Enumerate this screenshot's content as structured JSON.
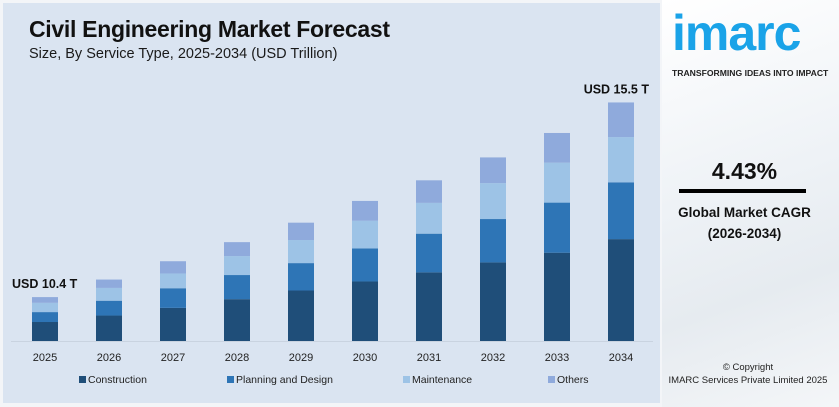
{
  "title": "Civil Engineering Market Forecast",
  "subtitle": "Size, By Service Type, 2025-2034 (USD Trillion)",
  "chart_data": {
    "type": "bar",
    "stacked": true,
    "categories": [
      "2025",
      "2026",
      "2027",
      "2028",
      "2029",
      "2030",
      "2031",
      "2032",
      "2033",
      "2034"
    ],
    "series": [
      {
        "name": "Construction",
        "color": "#1f4e79",
        "values": [
          4.5,
          4.5,
          4.71,
          5.01,
          5.27,
          5.49,
          5.75,
          6.02,
          6.24,
          6.62
        ]
      },
      {
        "name": "Planning and Design",
        "color": "#2e75b6",
        "values": [
          2.35,
          2.62,
          2.79,
          2.89,
          2.86,
          3.05,
          3.24,
          3.32,
          3.54,
          3.69
        ]
      },
      {
        "name": "Maintenance",
        "color": "#9dc3e6",
        "values": [
          2.2,
          2.26,
          2.1,
          2.27,
          2.41,
          2.55,
          2.58,
          2.75,
          2.82,
          2.94
        ]
      },
      {
        "name": "Others",
        "color": "#8faadc",
        "values": [
          1.35,
          1.48,
          1.74,
          1.67,
          1.81,
          1.83,
          1.89,
          1.97,
          2.1,
          2.25
        ]
      }
    ],
    "annotations": [
      {
        "category": "2025",
        "text": "USD 10.4 T"
      },
      {
        "category": "2034",
        "text": "USD 15.5 T"
      }
    ],
    "legend": "bottom",
    "grid": false,
    "y_axis_visible": false
  },
  "side": {
    "logo": "imarc",
    "tagline": "TRANSFORMING IDEAS INTO IMPACT",
    "cagr_value": "4.43%",
    "cagr_label": "Global Market CAGR",
    "cagr_period": "(2026-2034)",
    "copyright": "© Copyright",
    "company": "IMARC Services Private Limited 2025",
    "logo_color": "#1aa3e8"
  }
}
